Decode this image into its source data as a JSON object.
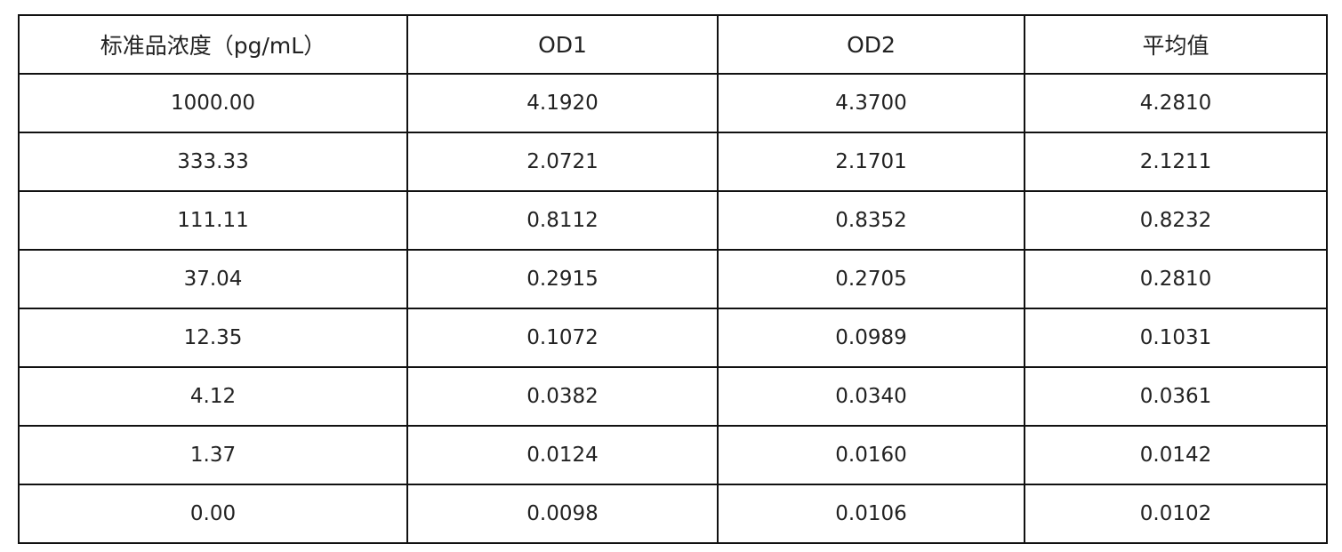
{
  "table": {
    "header": [
      "标准品浓度（pg/mL）",
      "OD1",
      "OD2",
      "平均值"
    ],
    "rows": [
      [
        "1000.00",
        "4.1920",
        "4.3700",
        "4.2810"
      ],
      [
        "333.33",
        "2.0721",
        "2.1701",
        "2.1211"
      ],
      [
        "111.11",
        "0.8112",
        "0.8352",
        "0.8232"
      ],
      [
        "37.04",
        "0.2915",
        "0.2705",
        "0.2810"
      ],
      [
        "12.35",
        "0.1072",
        "0.0989",
        "0.1031"
      ],
      [
        "4.12",
        "0.0382",
        "0.0340",
        "0.0361"
      ],
      [
        "1.37",
        "0.0124",
        "0.0160",
        "0.0142"
      ],
      [
        "0.00",
        "0.0098",
        "0.0106",
        "0.0102"
      ]
    ]
  }
}
